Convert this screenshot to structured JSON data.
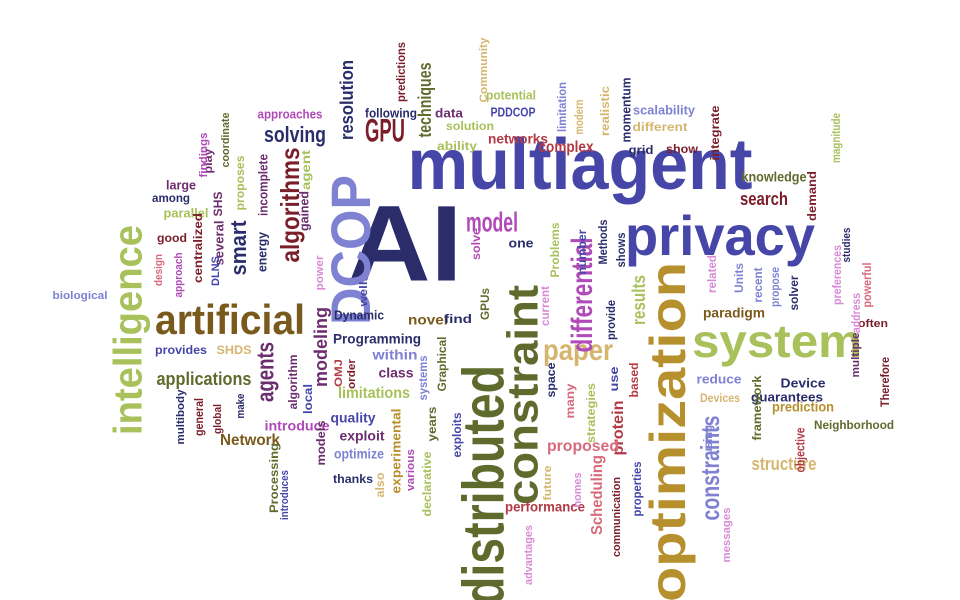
{
  "palette": {
    "navy": "#2b2d6b",
    "indigo": "#4546a8",
    "periwinkle": "#7f81d3",
    "olive": "#5f6b2c",
    "lime": "#a9c15b",
    "gold": "#b7902e",
    "tan": "#d6b66e",
    "brown": "#7a5a1c",
    "maroon": "#7a1e2a",
    "red": "#b23a46",
    "pink": "#d86a7c",
    "plum": "#6b2d6e",
    "magenta": "#b04ab8",
    "orchid": "#d88ad6"
  },
  "words": [
    {
      "text": "AI",
      "color": "navy"
    },
    {
      "text": "multiagent",
      "color": "indigo"
    },
    {
      "text": "privacy",
      "color": "indigo"
    },
    {
      "text": "optimization",
      "color": "gold"
    },
    {
      "text": "distributed",
      "color": "olive"
    },
    {
      "text": "constraint",
      "color": "olive"
    },
    {
      "text": "DCOP",
      "color": "periwinkle"
    },
    {
      "text": "system",
      "color": "lime"
    },
    {
      "text": "artificial",
      "color": "brown"
    },
    {
      "text": "intelligence",
      "color": "lime"
    },
    {
      "text": "paper",
      "color": "tan"
    },
    {
      "text": "differential",
      "color": "magenta"
    },
    {
      "text": "algorithms",
      "color": "maroon"
    },
    {
      "text": "agents",
      "color": "plum"
    },
    {
      "text": "GPU",
      "color": "maroon"
    },
    {
      "text": "model",
      "color": "magenta"
    },
    {
      "text": "solving",
      "color": "navy"
    },
    {
      "text": "resolution",
      "color": "navy"
    },
    {
      "text": "techniques",
      "color": "olive"
    },
    {
      "text": "smart",
      "color": "navy"
    },
    {
      "text": "constraints",
      "color": "periwinkle"
    },
    {
      "text": "applications",
      "color": "olive"
    },
    {
      "text": "search",
      "color": "maroon"
    },
    {
      "text": "knowledge",
      "color": "olive"
    },
    {
      "text": "results",
      "color": "lime"
    },
    {
      "text": "modeling",
      "color": "plum"
    },
    {
      "text": "Network",
      "color": "brown"
    },
    {
      "text": "structure",
      "color": "tan"
    },
    {
      "text": "protein",
      "color": "red"
    },
    {
      "text": "Scheduling",
      "color": "pink"
    },
    {
      "text": "proposed",
      "color": "pink"
    },
    {
      "text": "performance",
      "color": "red"
    },
    {
      "text": "complex",
      "color": "red"
    },
    {
      "text": "networks",
      "color": "red"
    },
    {
      "text": "Programming",
      "color": "navy"
    },
    {
      "text": "limitations",
      "color": "lime"
    },
    {
      "text": "quality",
      "color": "indigo"
    },
    {
      "text": "exploit",
      "color": "plum"
    },
    {
      "text": "introduce",
      "color": "magenta"
    },
    {
      "text": "optimize",
      "color": "periwinkle"
    },
    {
      "text": "novel",
      "color": "brown"
    },
    {
      "text": "class",
      "color": "plum"
    },
    {
      "text": "within",
      "color": "periwinkle"
    },
    {
      "text": "Dynamic",
      "color": "navy"
    },
    {
      "text": "paradigm",
      "color": "brown"
    },
    {
      "text": "guarantees",
      "color": "navy"
    },
    {
      "text": "framework",
      "color": "olive"
    },
    {
      "text": "Device",
      "color": "navy"
    },
    {
      "text": "prediction",
      "color": "gold"
    },
    {
      "text": "reduce",
      "color": "periwinkle"
    },
    {
      "text": "Devices",
      "color": "tan"
    },
    {
      "text": "Neighborhood",
      "color": "olive"
    },
    {
      "text": "objective",
      "color": "red"
    },
    {
      "text": "often",
      "color": "maroon"
    },
    {
      "text": "Therefore",
      "color": "maroon"
    },
    {
      "text": "multiple",
      "color": "plum"
    },
    {
      "text": "address",
      "color": "orchid"
    },
    {
      "text": "powerful",
      "color": "pink"
    },
    {
      "text": "studies",
      "color": "navy"
    },
    {
      "text": "preferences",
      "color": "orchid"
    },
    {
      "text": "solver",
      "color": "navy"
    },
    {
      "text": "propose",
      "color": "periwinkle"
    },
    {
      "text": "recent",
      "color": "periwinkle"
    },
    {
      "text": "related",
      "color": "orchid"
    },
    {
      "text": "Units",
      "color": "periwinkle"
    },
    {
      "text": "demand",
      "color": "maroon"
    },
    {
      "text": "magnitude",
      "color": "lime"
    },
    {
      "text": "integrate",
      "color": "maroon"
    },
    {
      "text": "scalability",
      "color": "periwinkle"
    },
    {
      "text": "different",
      "color": "tan"
    },
    {
      "text": "momentum",
      "color": "navy"
    },
    {
      "text": "grid",
      "color": "navy"
    },
    {
      "text": "show",
      "color": "maroon"
    },
    {
      "text": "realistic",
      "color": "tan"
    },
    {
      "text": "modern",
      "color": "tan"
    },
    {
      "text": "limitation",
      "color": "periwinkle"
    },
    {
      "text": "potential",
      "color": "lime"
    },
    {
      "text": "PDDCOP",
      "color": "indigo"
    },
    {
      "text": "data",
      "color": "plum"
    },
    {
      "text": "solution",
      "color": "lime"
    },
    {
      "text": "ability",
      "color": "lime"
    },
    {
      "text": "following",
      "color": "navy"
    },
    {
      "text": "approaches",
      "color": "magenta"
    },
    {
      "text": "predictions",
      "color": "maroon"
    },
    {
      "text": "Community",
      "color": "tan"
    },
    {
      "text": "Problems",
      "color": "lime"
    },
    {
      "text": "one",
      "color": "navy"
    },
    {
      "text": "solve",
      "color": "magenta"
    },
    {
      "text": "Methods",
      "color": "navy"
    },
    {
      "text": "number",
      "color": "indigo"
    },
    {
      "text": "shows",
      "color": "navy"
    },
    {
      "text": "provide",
      "color": "navy"
    },
    {
      "text": "current",
      "color": "orchid"
    },
    {
      "text": "GPUs",
      "color": "olive"
    },
    {
      "text": "find",
      "color": "navy"
    },
    {
      "text": "well",
      "color": "indigo"
    },
    {
      "text": "Graphical",
      "color": "olive"
    },
    {
      "text": "systems",
      "color": "periwinkle"
    },
    {
      "text": "space",
      "color": "navy"
    },
    {
      "text": "many",
      "color": "pink"
    },
    {
      "text": "based",
      "color": "red"
    },
    {
      "text": "use",
      "color": "indigo"
    },
    {
      "text": "strategies",
      "color": "lime"
    },
    {
      "text": "exploits",
      "color": "indigo"
    },
    {
      "text": "various",
      "color": "magenta"
    },
    {
      "text": "declarative",
      "color": "lime"
    },
    {
      "text": "years",
      "color": "olive"
    },
    {
      "text": "experimental",
      "color": "gold"
    },
    {
      "text": "also",
      "color": "tan"
    },
    {
      "text": "thanks",
      "color": "navy"
    },
    {
      "text": "models",
      "color": "plum"
    },
    {
      "text": "Processing",
      "color": "olive"
    },
    {
      "text": "introduces",
      "color": "indigo"
    },
    {
      "text": "future",
      "color": "tan"
    },
    {
      "text": "homes",
      "color": "orchid"
    },
    {
      "text": "communication",
      "color": "maroon"
    },
    {
      "text": "properties",
      "color": "indigo"
    },
    {
      "text": "advantages",
      "color": "orchid"
    },
    {
      "text": "messages",
      "color": "orchid"
    },
    {
      "text": "using",
      "color": "periwinkle"
    },
    {
      "text": "large",
      "color": "plum"
    },
    {
      "text": "among",
      "color": "navy"
    },
    {
      "text": "parallel",
      "color": "lime"
    },
    {
      "text": "good",
      "color": "maroon"
    },
    {
      "text": "design",
      "color": "pink"
    },
    {
      "text": "approach",
      "color": "magenta"
    },
    {
      "text": "centralized",
      "color": "maroon"
    },
    {
      "text": "SHS",
      "color": "plum"
    },
    {
      "text": "several",
      "color": "plum"
    },
    {
      "text": "incomplete",
      "color": "plum"
    },
    {
      "text": "energy",
      "color": "navy"
    },
    {
      "text": "gained",
      "color": "plum"
    },
    {
      "text": "agent",
      "color": "lime"
    },
    {
      "text": "proposes",
      "color": "lime"
    },
    {
      "text": "DLNS",
      "color": "indigo"
    },
    {
      "text": "coordinate",
      "color": "olive"
    },
    {
      "text": "play",
      "color": "plum"
    },
    {
      "text": "findings",
      "color": "magenta"
    },
    {
      "text": "power",
      "color": "orchid"
    },
    {
      "text": "biological",
      "color": "periwinkle"
    },
    {
      "text": "provides",
      "color": "indigo"
    },
    {
      "text": "SHDS",
      "color": "tan"
    },
    {
      "text": "multibody",
      "color": "navy"
    },
    {
      "text": "general",
      "color": "maroon"
    },
    {
      "text": "global",
      "color": "maroon"
    },
    {
      "text": "make",
      "color": "navy"
    },
    {
      "text": "algorithm",
      "color": "plum"
    },
    {
      "text": "local",
      "color": "indigo"
    },
    {
      "text": "OMJ",
      "color": "red"
    },
    {
      "text": "order",
      "color": "maroon"
    }
  ]
}
